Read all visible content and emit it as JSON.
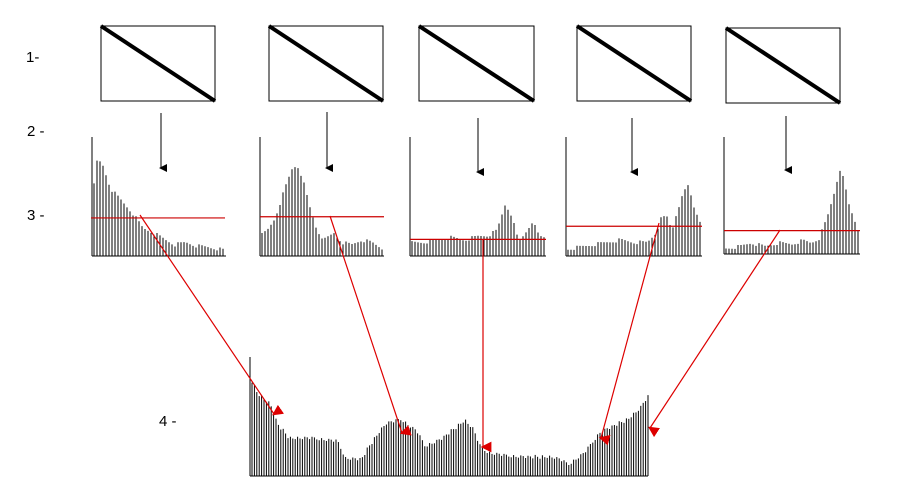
{
  "labels": {
    "step1": "1-",
    "step2": "2 -",
    "step3": "3 -",
    "step4": "4 -"
  },
  "colors": {
    "ink": "#000000",
    "threshold_line": "#cc0000",
    "arrow": "#dd0000",
    "background": "#ffffff"
  },
  "small_histograms": [
    {
      "threshold": 0.32,
      "profile": [
        [
          0,
          0.45
        ],
        [
          0.04,
          0.8
        ],
        [
          0.08,
          0.75
        ],
        [
          0.14,
          0.55
        ],
        [
          0.22,
          0.45
        ],
        [
          0.3,
          0.35
        ],
        [
          0.38,
          0.22
        ],
        [
          0.46,
          0.18
        ],
        [
          0.55,
          0.12
        ],
        [
          0.62,
          0.08
        ],
        [
          0.7,
          0.1
        ],
        [
          0.78,
          0.07
        ],
        [
          0.86,
          0.06
        ],
        [
          0.92,
          0.05
        ],
        [
          1,
          0.03
        ]
      ]
    },
    {
      "threshold": 0.33,
      "profile": [
        [
          0,
          0.15
        ],
        [
          0.06,
          0.2
        ],
        [
          0.12,
          0.3
        ],
        [
          0.2,
          0.55
        ],
        [
          0.26,
          0.72
        ],
        [
          0.3,
          0.75
        ],
        [
          0.34,
          0.65
        ],
        [
          0.4,
          0.4
        ],
        [
          0.46,
          0.2
        ],
        [
          0.52,
          0.12
        ],
        [
          0.6,
          0.18
        ],
        [
          0.66,
          0.1
        ],
        [
          0.74,
          0.08
        ],
        [
          0.82,
          0.12
        ],
        [
          0.9,
          0.1
        ],
        [
          1,
          0.04
        ]
      ]
    },
    {
      "threshold": 0.14,
      "profile": [
        [
          0,
          0.1
        ],
        [
          0.1,
          0.1
        ],
        [
          0.2,
          0.12
        ],
        [
          0.3,
          0.14
        ],
        [
          0.4,
          0.12
        ],
        [
          0.5,
          0.15
        ],
        [
          0.58,
          0.16
        ],
        [
          0.64,
          0.2
        ],
        [
          0.7,
          0.42
        ],
        [
          0.74,
          0.35
        ],
        [
          0.8,
          0.1
        ],
        [
          0.86,
          0.2
        ],
        [
          0.9,
          0.28
        ],
        [
          0.95,
          0.15
        ],
        [
          1,
          0.14
        ]
      ]
    },
    {
      "threshold": 0.25,
      "profile": [
        [
          0,
          0.04
        ],
        [
          0.1,
          0.06
        ],
        [
          0.2,
          0.08
        ],
        [
          0.3,
          0.1
        ],
        [
          0.4,
          0.12
        ],
        [
          0.5,
          0.1
        ],
        [
          0.6,
          0.1
        ],
        [
          0.66,
          0.18
        ],
        [
          0.7,
          0.3
        ],
        [
          0.74,
          0.32
        ],
        [
          0.78,
          0.2
        ],
        [
          0.82,
          0.38
        ],
        [
          0.88,
          0.55
        ],
        [
          0.9,
          0.58
        ],
        [
          0.94,
          0.4
        ],
        [
          1,
          0.25
        ]
      ]
    },
    {
      "threshold": 0.2,
      "profile": [
        [
          0,
          0.03
        ],
        [
          0.12,
          0.05
        ],
        [
          0.2,
          0.08
        ],
        [
          0.3,
          0.05
        ],
        [
          0.4,
          0.08
        ],
        [
          0.5,
          0.07
        ],
        [
          0.58,
          0.1
        ],
        [
          0.64,
          0.08
        ],
        [
          0.7,
          0.12
        ],
        [
          0.76,
          0.3
        ],
        [
          0.82,
          0.55
        ],
        [
          0.85,
          0.72
        ],
        [
          0.88,
          0.62
        ],
        [
          0.92,
          0.4
        ],
        [
          1,
          0.15
        ]
      ]
    }
  ],
  "combined_histogram": {
    "profile": [
      [
        0,
        0.82
      ],
      [
        0.02,
        0.68
      ],
      [
        0.05,
        0.6
      ],
      [
        0.07,
        0.42
      ],
      [
        0.1,
        0.3
      ],
      [
        0.16,
        0.3
      ],
      [
        0.22,
        0.28
      ],
      [
        0.24,
        0.14
      ],
      [
        0.28,
        0.13
      ],
      [
        0.3,
        0.24
      ],
      [
        0.34,
        0.42
      ],
      [
        0.38,
        0.46
      ],
      [
        0.42,
        0.36
      ],
      [
        0.44,
        0.24
      ],
      [
        0.48,
        0.3
      ],
      [
        0.52,
        0.4
      ],
      [
        0.54,
        0.45
      ],
      [
        0.56,
        0.38
      ],
      [
        0.58,
        0.22
      ],
      [
        0.6,
        0.18
      ],
      [
        0.64,
        0.16
      ],
      [
        0.7,
        0.15
      ],
      [
        0.76,
        0.14
      ],
      [
        0.78,
        0.12
      ],
      [
        0.8,
        0.08
      ],
      [
        0.84,
        0.18
      ],
      [
        0.88,
        0.36
      ],
      [
        0.92,
        0.42
      ],
      [
        0.95,
        0.46
      ],
      [
        0.98,
        0.55
      ],
      [
        1,
        0.65
      ]
    ]
  }
}
